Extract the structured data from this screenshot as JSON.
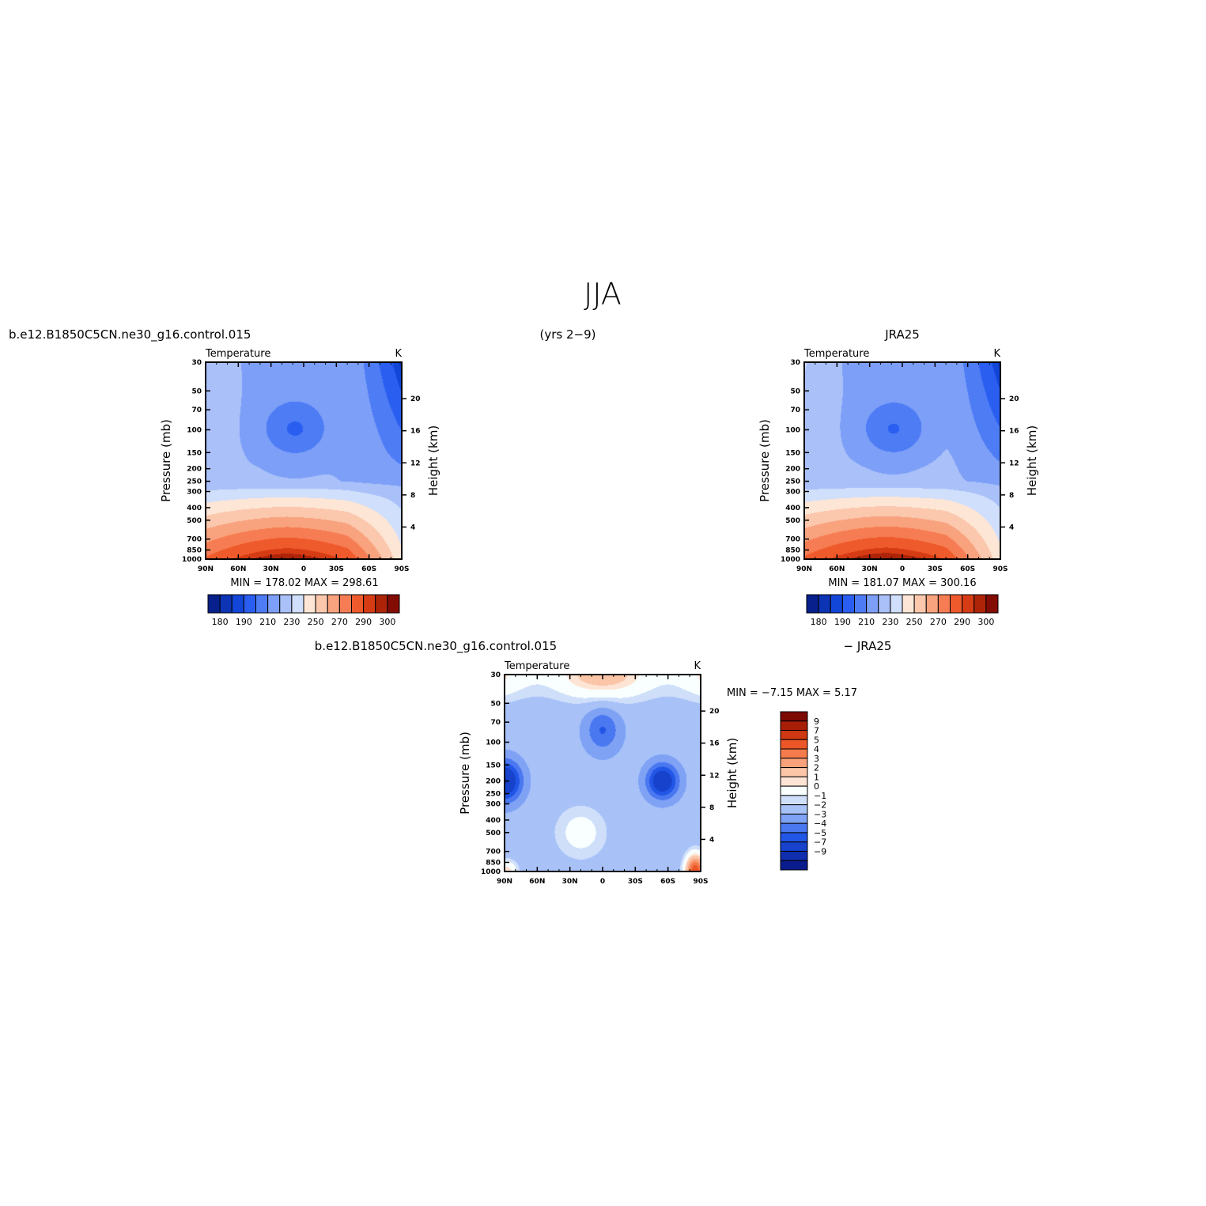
{
  "figure": {
    "title": "JJA",
    "left_header": "b.e12.B1850C5CN.ne30_g16.control.015",
    "center_header": "(yrs 2−9)",
    "right_header": "JRA25",
    "diff_header_left": "b.e12.B1850C5CN.ne30_g16.control.015",
    "diff_header_right": "− JRA25"
  },
  "colors": {
    "abs_palette": [
      "#08208c",
      "#0c34b4",
      "#1246d8",
      "#2a5ef0",
      "#4d7cf5",
      "#7d9ff7",
      "#a9c0f9",
      "#d0dffb",
      "#fde6d6",
      "#fbc7ad",
      "#f9a27e",
      "#f67d53",
      "#ef5a2c",
      "#d63c14",
      "#ae2408",
      "#830c04"
    ],
    "diff_palette": [
      "#0a1c8c",
      "#0f2fae",
      "#1642cc",
      "#2256e6",
      "#4a78f0",
      "#7fa2f5",
      "#a8c2f8",
      "#cfdffa",
      "#f9ffff",
      "#fde4d4",
      "#fbc5a8",
      "#f9a17a",
      "#f57a4c",
      "#ec5628",
      "#cf3812",
      "#a81f07",
      "#7c0a03"
    ]
  },
  "chart_data": [
    {
      "type": "heatmap",
      "name": "model",
      "left_label": "Temperature",
      "right_label": "K",
      "ylabel": "Pressure (mb)",
      "y2label": "Height (km)",
      "x_ticks": [
        "90N",
        "60N",
        "30N",
        "0",
        "30S",
        "60S",
        "90S"
      ],
      "y_ticks": [
        30,
        50,
        70,
        100,
        150,
        200,
        250,
        300,
        400,
        500,
        700,
        850,
        1000
      ],
      "y2_ticks": [
        20,
        16,
        12,
        8,
        4
      ],
      "ylim": [
        1000,
        30
      ],
      "y_scale": "log",
      "stats": "MIN = 178.02   MAX = 298.61",
      "min": 178.02,
      "max": 298.61,
      "colorbar": {
        "orientation": "horizontal",
        "labels": [
          "180",
          "190",
          "210",
          "230",
          "250",
          "270",
          "290",
          "300"
        ]
      }
    },
    {
      "type": "heatmap",
      "name": "obs",
      "left_label": "Temperature",
      "right_label": "K",
      "ylabel": "Pressure (mb)",
      "y2label": "Height (km)",
      "x_ticks": [
        "90N",
        "60N",
        "30N",
        "0",
        "30S",
        "60S",
        "90S"
      ],
      "y_ticks": [
        30,
        50,
        70,
        100,
        150,
        200,
        250,
        300,
        400,
        500,
        700,
        850,
        1000
      ],
      "y2_ticks": [
        20,
        16,
        12,
        8,
        4
      ],
      "ylim": [
        1000,
        30
      ],
      "y_scale": "log",
      "stats": "MIN = 181.07   MAX = 300.16",
      "min": 181.07,
      "max": 300.16,
      "colorbar": {
        "orientation": "horizontal",
        "labels": [
          "180",
          "190",
          "210",
          "230",
          "250",
          "270",
          "290",
          "300"
        ]
      }
    },
    {
      "type": "heatmap",
      "name": "difference",
      "left_label": "Temperature",
      "right_label": "K",
      "ylabel": "Pressure (mb)",
      "y2label": "Height (km)",
      "x_ticks": [
        "90N",
        "60N",
        "30N",
        "0",
        "30S",
        "60S",
        "90S"
      ],
      "y_ticks": [
        30,
        50,
        70,
        100,
        150,
        200,
        250,
        300,
        400,
        500,
        700,
        850,
        1000
      ],
      "y2_ticks": [
        20,
        16,
        12,
        8,
        4
      ],
      "ylim": [
        1000,
        30
      ],
      "y_scale": "log",
      "stats": "MIN =   −7.15   MAX =     5.17",
      "min": -7.15,
      "max": 5.17,
      "colorbar": {
        "orientation": "vertical",
        "labels": [
          "9",
          "7",
          "5",
          "4",
          "3",
          "2",
          "1",
          "0",
          "−1",
          "−2",
          "−3",
          "−4",
          "−5",
          "−7",
          "−9"
        ]
      }
    }
  ]
}
